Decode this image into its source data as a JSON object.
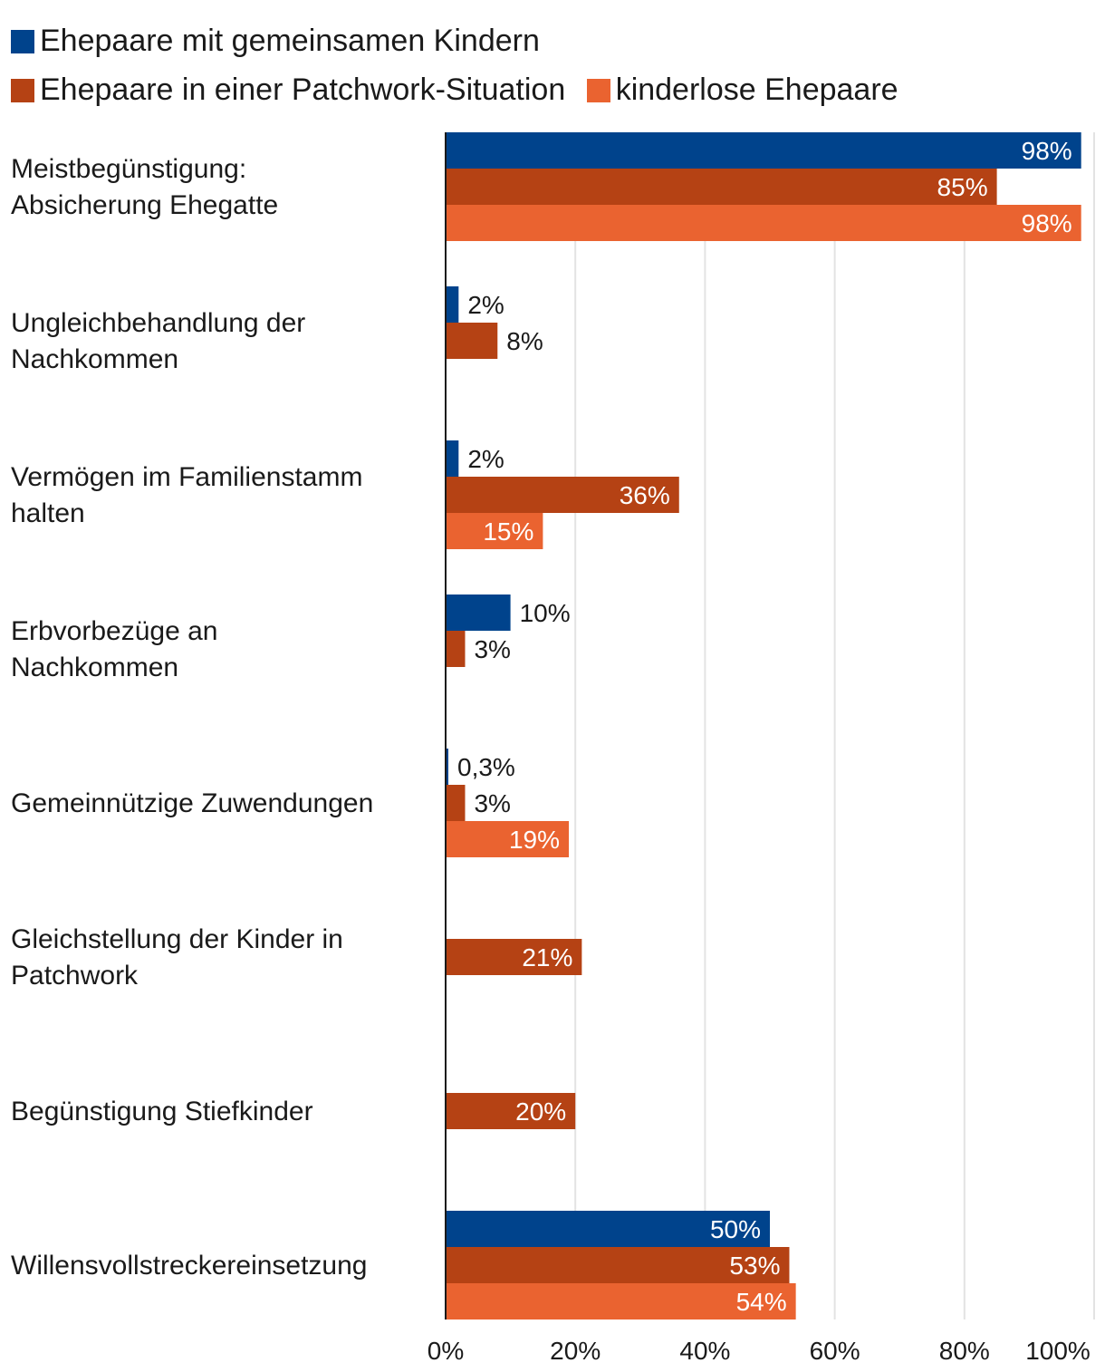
{
  "chart_data": {
    "type": "bar",
    "orientation": "horizontal",
    "title": "",
    "xlabel": "",
    "ylabel": "",
    "xlim": [
      0,
      100
    ],
    "x_ticks": [
      "0%",
      "20%",
      "40%",
      "60%",
      "80%",
      "100%"
    ],
    "grid": true,
    "legend_position": "top",
    "categories": [
      [
        "Meistbegünstigung:",
        "Absicherung Ehegatte"
      ],
      [
        "Ungleichbehandlung der",
        "Nachkommen"
      ],
      [
        "Vermögen im Familienstamm",
        "halten"
      ],
      [
        "Erbvorbezüge an",
        "Nachkommen"
      ],
      [
        "Gemeinnützige Zuwendungen"
      ],
      [
        "Gleichstellung der Kinder in",
        "Patchwork"
      ],
      [
        "Begünstigung Stiefkinder"
      ],
      [
        "Willensvollstreckereinsetzung"
      ]
    ],
    "series": [
      {
        "name": "Ehepaare mit gemeinsamen Kindern",
        "color": "#00438c",
        "values": [
          98,
          2,
          2,
          10,
          0.3,
          null,
          null,
          50
        ],
        "labels": [
          "98%",
          "2%",
          "2%",
          "10%",
          "0,3%",
          null,
          null,
          "50%"
        ]
      },
      {
        "name": "Ehepaare in einer Patchwork-Situation",
        "color": "#b54214",
        "values": [
          85,
          8,
          36,
          3,
          3,
          21,
          20,
          53
        ],
        "labels": [
          "85%",
          "8%",
          "36%",
          "3%",
          "3%",
          "21%",
          "20%",
          "53%"
        ]
      },
      {
        "name": "kinderlose Ehepaare",
        "color": "#ea6330",
        "values": [
          98,
          null,
          15,
          null,
          19,
          null,
          null,
          54
        ],
        "labels": [
          "98%",
          null,
          "15%",
          null,
          "19%",
          null,
          null,
          "54%"
        ]
      }
    ]
  }
}
